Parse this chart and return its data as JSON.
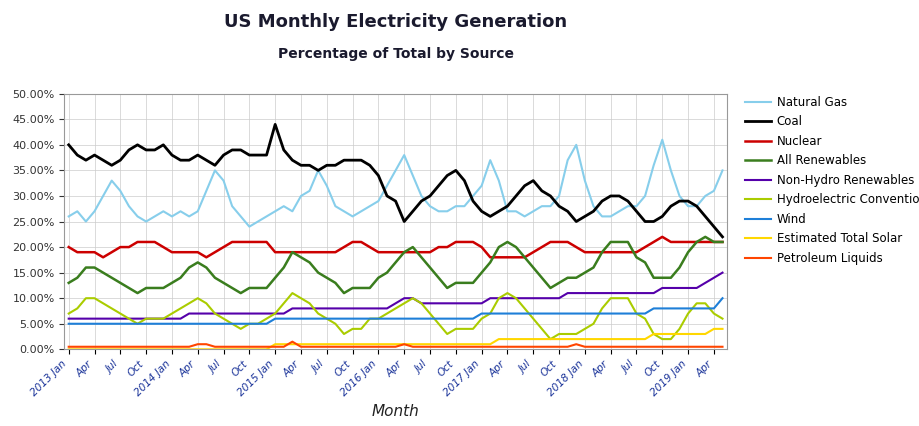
{
  "title": "US Monthly Electricity Generation",
  "subtitle": "Percentage of Total by Source",
  "xlabel": "Month",
  "title_color": "#1a1a2e",
  "series": {
    "Natural Gas": {
      "color": "#87CEEB",
      "lw": 1.5,
      "values": [
        26,
        27,
        25,
        27,
        30,
        33,
        31,
        28,
        26,
        25,
        26,
        27,
        26,
        27,
        26,
        27,
        31,
        35,
        33,
        28,
        26,
        24,
        25,
        26,
        27,
        28,
        27,
        30,
        31,
        35,
        32,
        28,
        27,
        26,
        27,
        28,
        29,
        32,
        35,
        38,
        34,
        30,
        28,
        27,
        27,
        28,
        28,
        30,
        32,
        37,
        33,
        27,
        27,
        26,
        27,
        28,
        28,
        30,
        37,
        40,
        33,
        28,
        26,
        26,
        27,
        28,
        28,
        30,
        36,
        41,
        35,
        30,
        28,
        28,
        30,
        31,
        35
      ]
    },
    "Coal": {
      "color": "#000000",
      "lw": 2.0,
      "values": [
        40,
        38,
        37,
        38,
        37,
        36,
        37,
        39,
        40,
        39,
        39,
        40,
        38,
        37,
        37,
        38,
        37,
        36,
        38,
        39,
        39,
        38,
        38,
        38,
        44,
        39,
        37,
        36,
        36,
        35,
        36,
        36,
        37,
        37,
        37,
        36,
        34,
        30,
        29,
        25,
        27,
        29,
        30,
        32,
        34,
        35,
        33,
        29,
        27,
        26,
        27,
        28,
        30,
        32,
        33,
        31,
        30,
        28,
        27,
        25,
        26,
        27,
        29,
        30,
        30,
        29,
        27,
        25,
        25,
        26,
        28,
        29,
        29,
        28,
        26,
        24,
        22
      ]
    },
    "Nuclear": {
      "color": "#CC0000",
      "lw": 1.8,
      "values": [
        20,
        19,
        19,
        19,
        18,
        19,
        20,
        20,
        21,
        21,
        21,
        20,
        19,
        19,
        19,
        19,
        18,
        19,
        20,
        21,
        21,
        21,
        21,
        21,
        19,
        19,
        19,
        19,
        19,
        19,
        19,
        19,
        20,
        21,
        21,
        20,
        19,
        19,
        19,
        19,
        19,
        19,
        19,
        20,
        20,
        21,
        21,
        21,
        20,
        18,
        18,
        18,
        18,
        18,
        19,
        20,
        21,
        21,
        21,
        20,
        19,
        19,
        19,
        19,
        19,
        19,
        19,
        20,
        21,
        22,
        21,
        21,
        21,
        21,
        21,
        21,
        21
      ]
    },
    "All Renewables": {
      "color": "#3a7d1e",
      "lw": 1.8,
      "values": [
        13,
        14,
        16,
        16,
        15,
        14,
        13,
        12,
        11,
        12,
        12,
        12,
        13,
        14,
        16,
        17,
        16,
        14,
        13,
        12,
        11,
        12,
        12,
        12,
        14,
        16,
        19,
        18,
        17,
        15,
        14,
        13,
        11,
        12,
        12,
        12,
        14,
        15,
        17,
        19,
        20,
        18,
        16,
        14,
        12,
        13,
        13,
        13,
        15,
        17,
        20,
        21,
        20,
        18,
        16,
        14,
        12,
        13,
        14,
        14,
        15,
        16,
        19,
        21,
        21,
        21,
        18,
        17,
        14,
        14,
        14,
        16,
        19,
        21,
        22,
        21,
        21
      ]
    },
    "Non-Hydro Renewables": {
      "color": "#5500aa",
      "lw": 1.5,
      "values": [
        6,
        6,
        6,
        6,
        6,
        6,
        6,
        6,
        6,
        6,
        6,
        6,
        6,
        6,
        7,
        7,
        7,
        7,
        7,
        7,
        7,
        7,
        7,
        7,
        7,
        7,
        8,
        8,
        8,
        8,
        8,
        8,
        8,
        8,
        8,
        8,
        8,
        8,
        9,
        10,
        10,
        9,
        9,
        9,
        9,
        9,
        9,
        9,
        9,
        10,
        10,
        10,
        10,
        10,
        10,
        10,
        10,
        10,
        11,
        11,
        11,
        11,
        11,
        11,
        11,
        11,
        11,
        11,
        11,
        12,
        12,
        12,
        12,
        12,
        13,
        14,
        15
      ]
    },
    "Hydroelectric Conventional": {
      "color": "#aacc00",
      "lw": 1.5,
      "values": [
        7,
        8,
        10,
        10,
        9,
        8,
        7,
        6,
        5,
        6,
        6,
        6,
        7,
        8,
        9,
        10,
        9,
        7,
        6,
        5,
        4,
        5,
        5,
        6,
        7,
        9,
        11,
        10,
        9,
        7,
        6,
        5,
        3,
        4,
        4,
        6,
        6,
        7,
        8,
        9,
        10,
        9,
        7,
        5,
        3,
        4,
        4,
        4,
        6,
        7,
        10,
        11,
        10,
        8,
        6,
        4,
        2,
        3,
        3,
        3,
        4,
        5,
        8,
        10,
        10,
        10,
        7,
        6,
        3,
        2,
        2,
        4,
        7,
        9,
        9,
        7,
        6
      ]
    },
    "Wind": {
      "color": "#1E7FD8",
      "lw": 1.5,
      "values": [
        5,
        5,
        5,
        5,
        5,
        5,
        5,
        5,
        5,
        5,
        5,
        5,
        5,
        5,
        5,
        5,
        5,
        5,
        5,
        5,
        5,
        5,
        5,
        5,
        6,
        6,
        6,
        6,
        6,
        6,
        6,
        6,
        6,
        6,
        6,
        6,
        6,
        6,
        6,
        6,
        6,
        6,
        6,
        6,
        6,
        6,
        6,
        6,
        7,
        7,
        7,
        7,
        7,
        7,
        7,
        7,
        7,
        7,
        7,
        7,
        7,
        7,
        7,
        7,
        7,
        7,
        7,
        7,
        8,
        8,
        8,
        8,
        8,
        8,
        8,
        8,
        10
      ]
    },
    "Estimated Total Solar": {
      "color": "#FFD700",
      "lw": 1.5,
      "values": [
        0,
        0,
        0,
        0,
        0,
        0,
        0,
        0,
        0,
        0,
        0,
        0,
        0,
        0,
        0,
        0,
        0,
        0,
        0,
        0,
        0,
        0,
        0,
        0,
        1,
        1,
        1,
        1,
        1,
        1,
        1,
        1,
        1,
        1,
        1,
        1,
        1,
        1,
        1,
        1,
        1,
        1,
        1,
        1,
        1,
        1,
        1,
        1,
        1,
        1,
        2,
        2,
        2,
        2,
        2,
        2,
        2,
        2,
        2,
        2,
        2,
        2,
        2,
        2,
        2,
        2,
        2,
        2,
        3,
        3,
        3,
        3,
        3,
        3,
        3,
        4,
        4
      ]
    },
    "Petroleum Liquids": {
      "color": "#FF4500",
      "lw": 1.5,
      "values": [
        0.5,
        0.5,
        0.5,
        0.5,
        0.5,
        0.5,
        0.5,
        0.5,
        0.5,
        0.5,
        0.5,
        0.5,
        0.5,
        0.5,
        0.5,
        1,
        1,
        0.5,
        0.5,
        0.5,
        0.5,
        0.5,
        0.5,
        0.5,
        0.5,
        0.5,
        1.5,
        0.5,
        0.5,
        0.5,
        0.5,
        0.5,
        0.5,
        0.5,
        0.5,
        0.5,
        0.5,
        0.5,
        0.5,
        1,
        0.5,
        0.5,
        0.5,
        0.5,
        0.5,
        0.5,
        0.5,
        0.5,
        0.5,
        0.5,
        0.5,
        0.5,
        0.5,
        0.5,
        0.5,
        0.5,
        0.5,
        0.5,
        0.5,
        1,
        0.5,
        0.5,
        0.5,
        0.5,
        0.5,
        0.5,
        0.5,
        0.5,
        0.5,
        0.5,
        0.5,
        0.5,
        0.5,
        0.5,
        0.5,
        0.5,
        0.5
      ]
    }
  },
  "ylim": [
    0,
    50
  ],
  "yticks": [
    0,
    5,
    10,
    15,
    20,
    25,
    30,
    35,
    40,
    45,
    50
  ],
  "n_months": 77,
  "xtick_positions": [
    0,
    3,
    6,
    9,
    12,
    15,
    18,
    21,
    24,
    27,
    30,
    33,
    36,
    39,
    42,
    45,
    48,
    51,
    54,
    57,
    60,
    63,
    66,
    69,
    72,
    75
  ],
  "xtick_labels": [
    "2013 Jan",
    "Apr",
    "Jul",
    "Oct",
    "2014 Jan",
    "Apr",
    "Jul",
    "Oct",
    "2015 Jan",
    "Apr",
    "Jul",
    "Oct",
    "2016 Jan",
    "Apr",
    "Jul",
    "Oct",
    "2017 Jan",
    "Apr",
    "Jul",
    "Oct",
    "2018 Jan",
    "Apr",
    "Jul",
    "Oct",
    "2019 Jan",
    "Apr"
  ]
}
